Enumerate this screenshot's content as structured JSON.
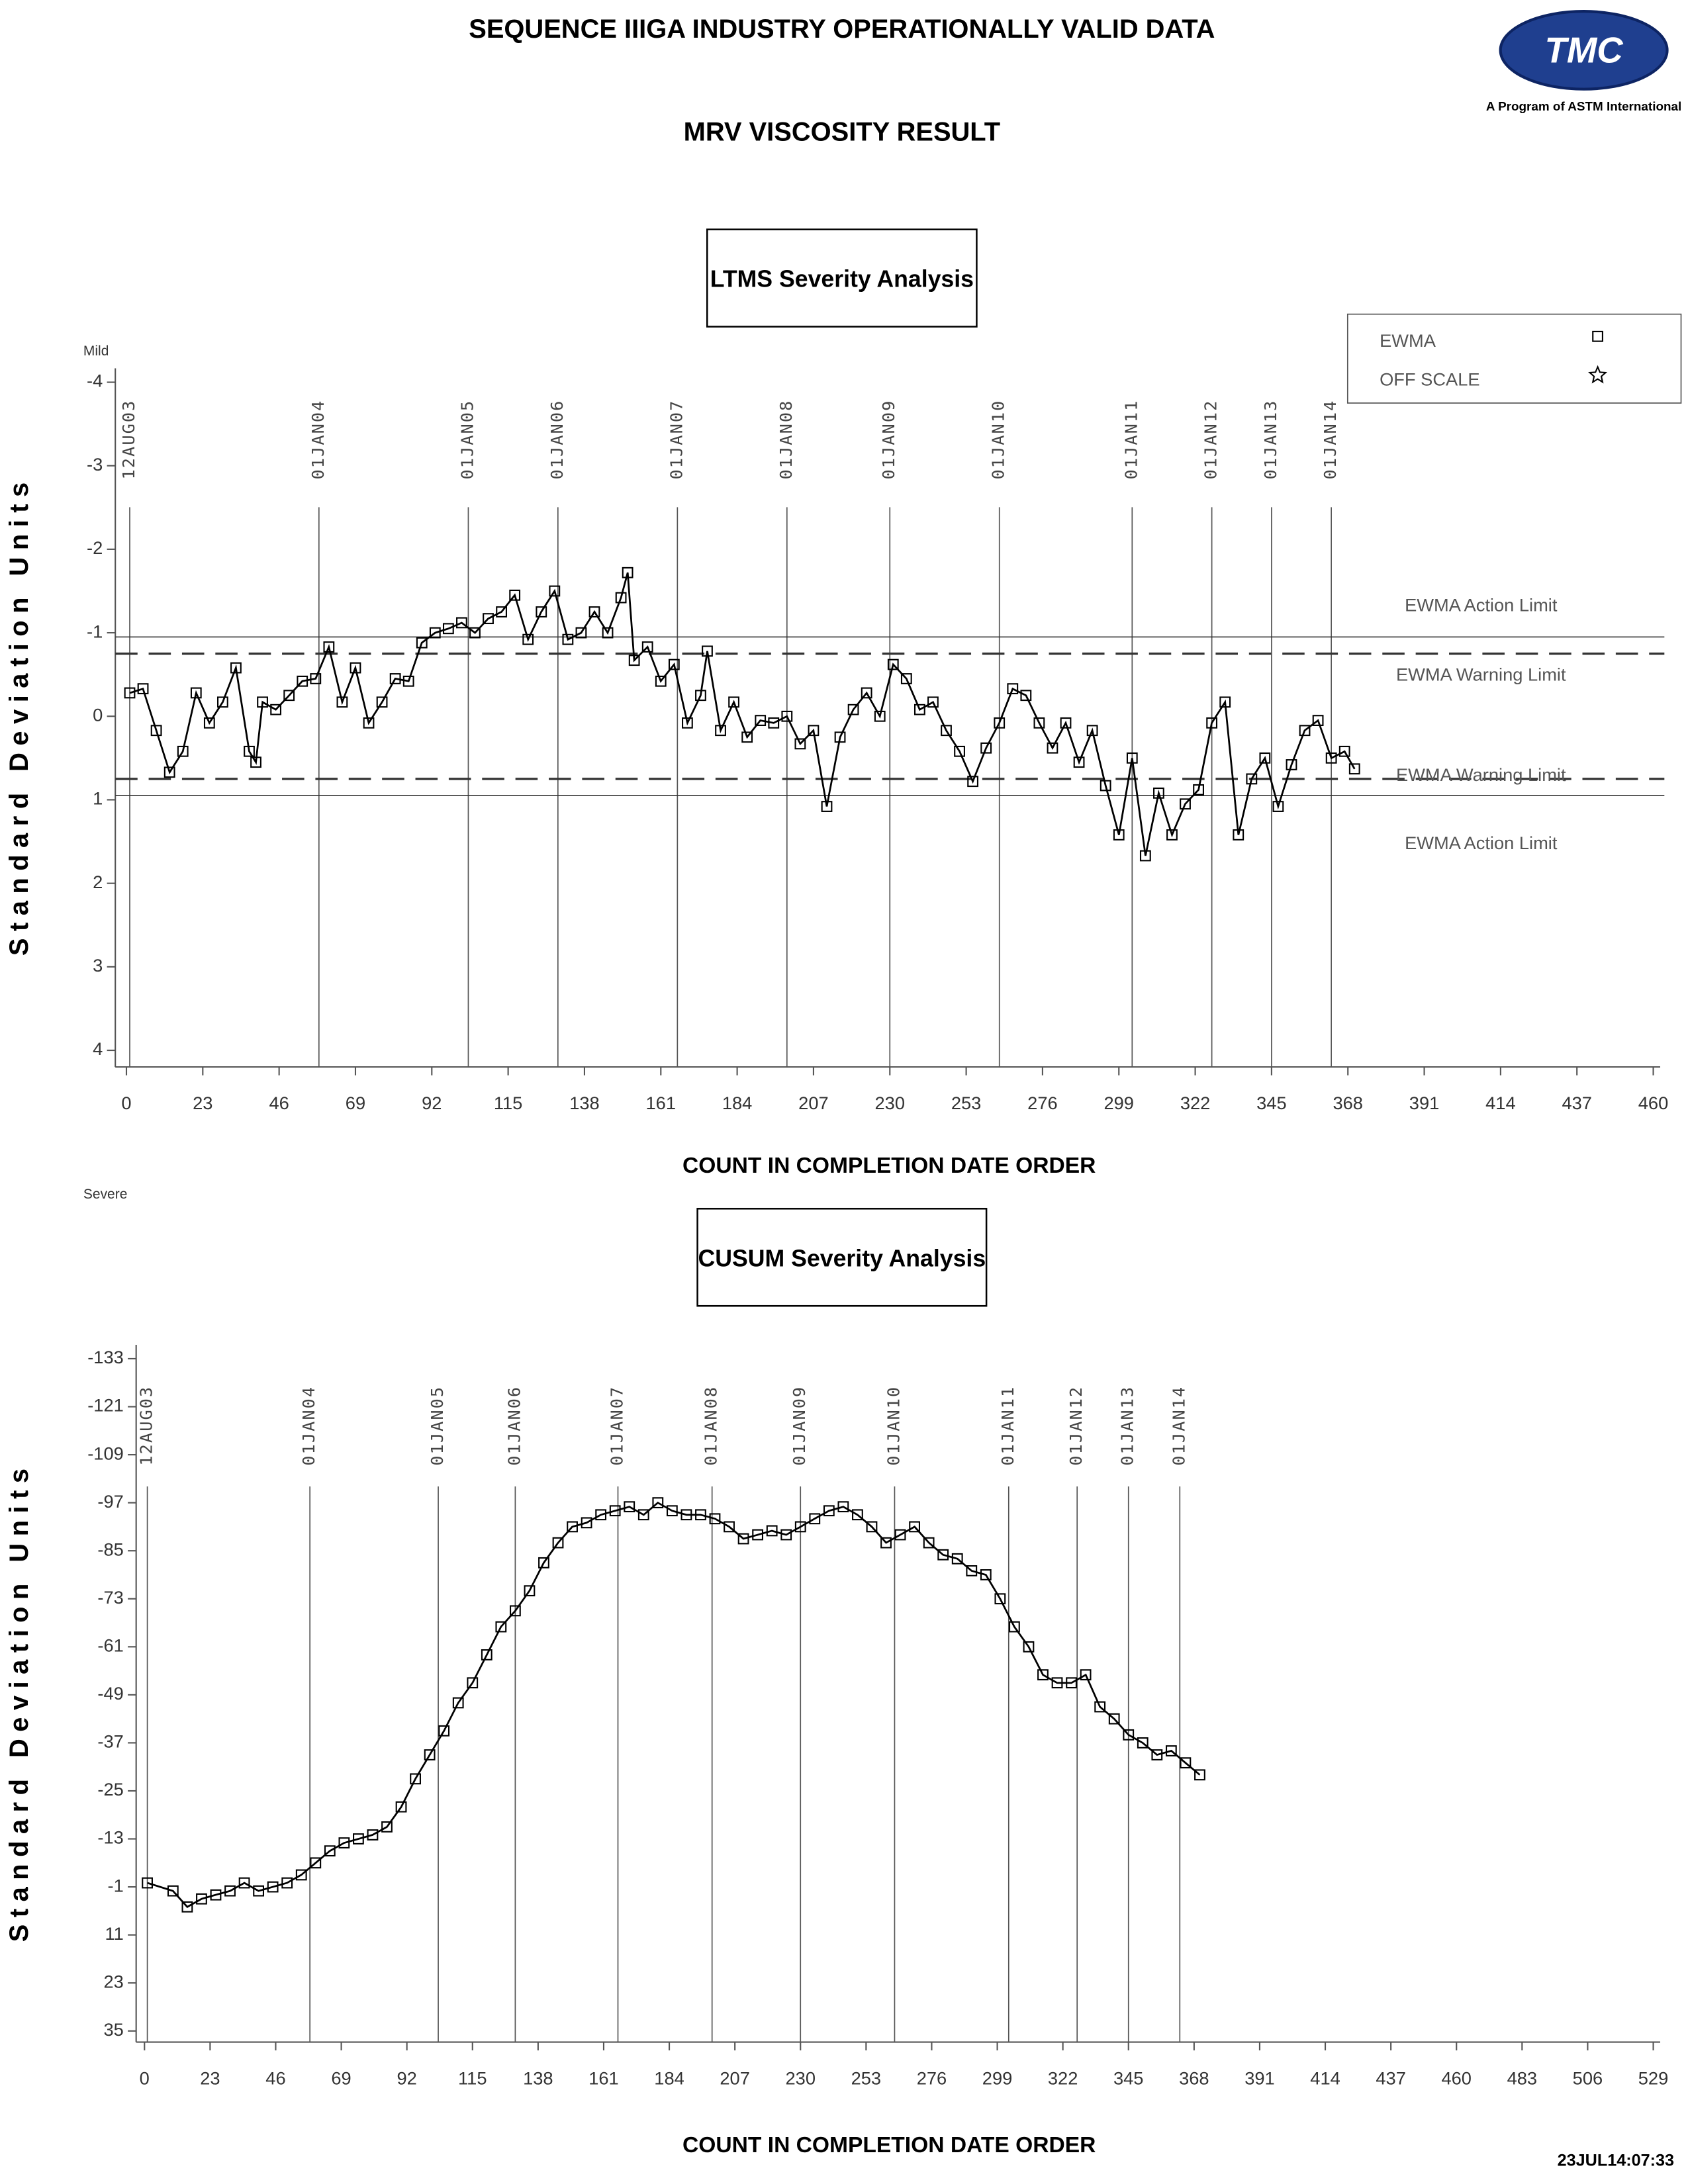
{
  "header": {
    "title": "SEQUENCE IIIGA INDUSTRY OPERATIONALLY VALID DATA",
    "subtitle": "MRV VISCOSITY RESULT",
    "logo_text": "TMC",
    "logo_caption": "A Program of ASTM International",
    "timestamp": "23JUL14:07:33"
  },
  "chart_data": [
    {
      "type": "line",
      "title": "LTMS Severity Analysis",
      "xlabel": "COUNT IN COMPLETION DATE ORDER",
      "ylabel": "Standard Deviation Units",
      "top_note": "Mild",
      "bottom_note": "Severe",
      "xlim": [
        0,
        460
      ],
      "xticks": [
        0,
        23,
        46,
        69,
        92,
        115,
        138,
        161,
        184,
        207,
        230,
        253,
        276,
        299,
        322,
        345,
        368,
        391,
        414,
        437,
        460
      ],
      "ylim": [
        -4,
        4
      ],
      "yticks": [
        -4,
        -3,
        -2,
        -1,
        0,
        1,
        2,
        3,
        4
      ],
      "y_inverted": true,
      "legend": "top-right",
      "date_markers": {
        "x": [
          1,
          58,
          103,
          130,
          166,
          199,
          230,
          263,
          303,
          327,
          345,
          363
        ],
        "labels": [
          "12AUG03",
          "01JAN04",
          "01JAN05",
          "01JAN06",
          "01JAN07",
          "01JAN08",
          "01JAN09",
          "01JAN10",
          "01JAN11",
          "01JAN12",
          "01JAN13",
          "01JAN14"
        ]
      },
      "reference_lines": [
        {
          "value": -0.95,
          "label": "EWMA Action Limit",
          "style": "solid"
        },
        {
          "value": -0.75,
          "label": "EWMA Warning Limit",
          "style": "dashed"
        },
        {
          "value": 0.75,
          "label": "EWMA Warning Limit",
          "style": "dashed"
        },
        {
          "value": 0.95,
          "label": "EWMA Action Limit",
          "style": "solid"
        }
      ],
      "series": [
        {
          "name": "EWMA",
          "color": "#000000",
          "marker": "square",
          "x": [
            1,
            5,
            9,
            13,
            17,
            21,
            25,
            29,
            33,
            37,
            39,
            41,
            45,
            49,
            53,
            57,
            61,
            65,
            69,
            73,
            77,
            81,
            85,
            89,
            93,
            97,
            101,
            105,
            109,
            113,
            117,
            121,
            125,
            129,
            133,
            137,
            141,
            145,
            149,
            151,
            153,
            157,
            161,
            165,
            169,
            173,
            175,
            179,
            183,
            187,
            191,
            195,
            199,
            203,
            207,
            211,
            215,
            219,
            223,
            227,
            231,
            235,
            239,
            243,
            247,
            251,
            255,
            259,
            263,
            267,
            271,
            275,
            279,
            283,
            287,
            291,
            295,
            299,
            303,
            307,
            311,
            315,
            319,
            323,
            327,
            331,
            335,
            339,
            343,
            347,
            351,
            355,
            359,
            363,
            367,
            370
          ],
          "values": [
            -0.28,
            -0.33,
            0.17,
            0.67,
            0.42,
            -0.28,
            0.08,
            -0.17,
            -0.58,
            0.42,
            0.55,
            -0.17,
            -0.08,
            -0.25,
            -0.42,
            -0.45,
            -0.83,
            -0.17,
            -0.58,
            0.08,
            -0.17,
            -0.45,
            -0.42,
            -0.88,
            -1.0,
            -1.05,
            -1.12,
            -1.0,
            -1.17,
            -1.25,
            -1.45,
            -0.92,
            -1.25,
            -1.5,
            -0.92,
            -1.0,
            -1.25,
            -1.0,
            -1.42,
            -1.72,
            -0.67,
            -0.83,
            -0.42,
            -0.62,
            0.08,
            -0.25,
            -0.78,
            0.17,
            -0.17,
            0.25,
            0.05,
            0.08,
            0,
            0.33,
            0.17,
            1.08,
            0.25,
            -0.08,
            -0.28,
            0,
            -0.62,
            -0.45,
            -0.08,
            -0.17,
            0.17,
            0.42,
            0.78,
            0.38,
            0.08,
            -0.33,
            -0.25,
            0.08,
            0.38,
            0.08,
            0.55,
            0.17,
            0.83,
            1.42,
            0.5,
            1.67,
            0.92,
            1.42,
            1.05,
            0.88,
            0.08,
            -0.17,
            1.42,
            0.75,
            0.5,
            1.08,
            0.58,
            0.17,
            0.05,
            0.5,
            0.42,
            0.63
          ]
        },
        {
          "name": "OFF SCALE",
          "color": "#000000",
          "marker": "star",
          "x": [],
          "values": []
        }
      ]
    },
    {
      "type": "line",
      "title": "CUSUM Severity Analysis",
      "xlabel": "COUNT IN COMPLETION DATE ORDER",
      "ylabel": "Standard Deviation Units",
      "xlim": [
        0,
        529
      ],
      "xticks": [
        0,
        23,
        46,
        69,
        92,
        115,
        138,
        161,
        184,
        207,
        230,
        253,
        276,
        299,
        322,
        345,
        368,
        391,
        414,
        437,
        460,
        483,
        506,
        529
      ],
      "ylim": [
        -133,
        35
      ],
      "yticks": [
        -133,
        -121,
        -109,
        -97,
        -85,
        -73,
        -61,
        -49,
        -37,
        -25,
        -13,
        -1,
        11,
        23,
        35
      ],
      "y_inverted": true,
      "date_markers": {
        "x": [
          1,
          58,
          103,
          130,
          166,
          199,
          230,
          263,
          303,
          327,
          345,
          363
        ],
        "labels": [
          "12AUG03",
          "01JAN04",
          "01JAN05",
          "01JAN06",
          "01JAN07",
          "01JAN08",
          "01JAN09",
          "01JAN10",
          "01JAN11",
          "01JAN12",
          "01JAN13",
          "01JAN14"
        ]
      },
      "series": [
        {
          "name": "CUSUM",
          "color": "#000000",
          "marker": "square",
          "x": [
            1,
            10,
            15,
            20,
            25,
            30,
            35,
            40,
            45,
            50,
            55,
            60,
            65,
            70,
            75,
            80,
            85,
            90,
            95,
            100,
            105,
            110,
            115,
            120,
            125,
            130,
            135,
            140,
            145,
            150,
            155,
            160,
            165,
            170,
            175,
            180,
            185,
            190,
            195,
            200,
            205,
            210,
            215,
            220,
            225,
            230,
            235,
            240,
            245,
            250,
            255,
            260,
            265,
            270,
            275,
            280,
            285,
            290,
            295,
            300,
            305,
            310,
            315,
            320,
            325,
            330,
            335,
            340,
            345,
            350,
            355,
            360,
            365,
            370
          ],
          "values": [
            -2,
            0,
            4,
            2,
            1,
            0,
            -2,
            0,
            -1,
            -2,
            -4,
            -7,
            -10,
            -12,
            -13,
            -14,
            -16,
            -21,
            -28,
            -34,
            -40,
            -47,
            -52,
            -59,
            -66,
            -70,
            -75,
            -82,
            -87,
            -91,
            -92,
            -94,
            -95,
            -96,
            -94,
            -97,
            -95,
            -94,
            -94,
            -93,
            -91,
            -88,
            -89,
            -90,
            -89,
            -91,
            -93,
            -95,
            -96,
            -94,
            -91,
            -87,
            -89,
            -91,
            -87,
            -84,
            -83,
            -80,
            -79,
            -73,
            -66,
            -61,
            -54,
            -52,
            -52,
            -54,
            -46,
            -43,
            -39,
            -37,
            -34,
            -35,
            -32,
            -29
          ]
        }
      ]
    }
  ]
}
